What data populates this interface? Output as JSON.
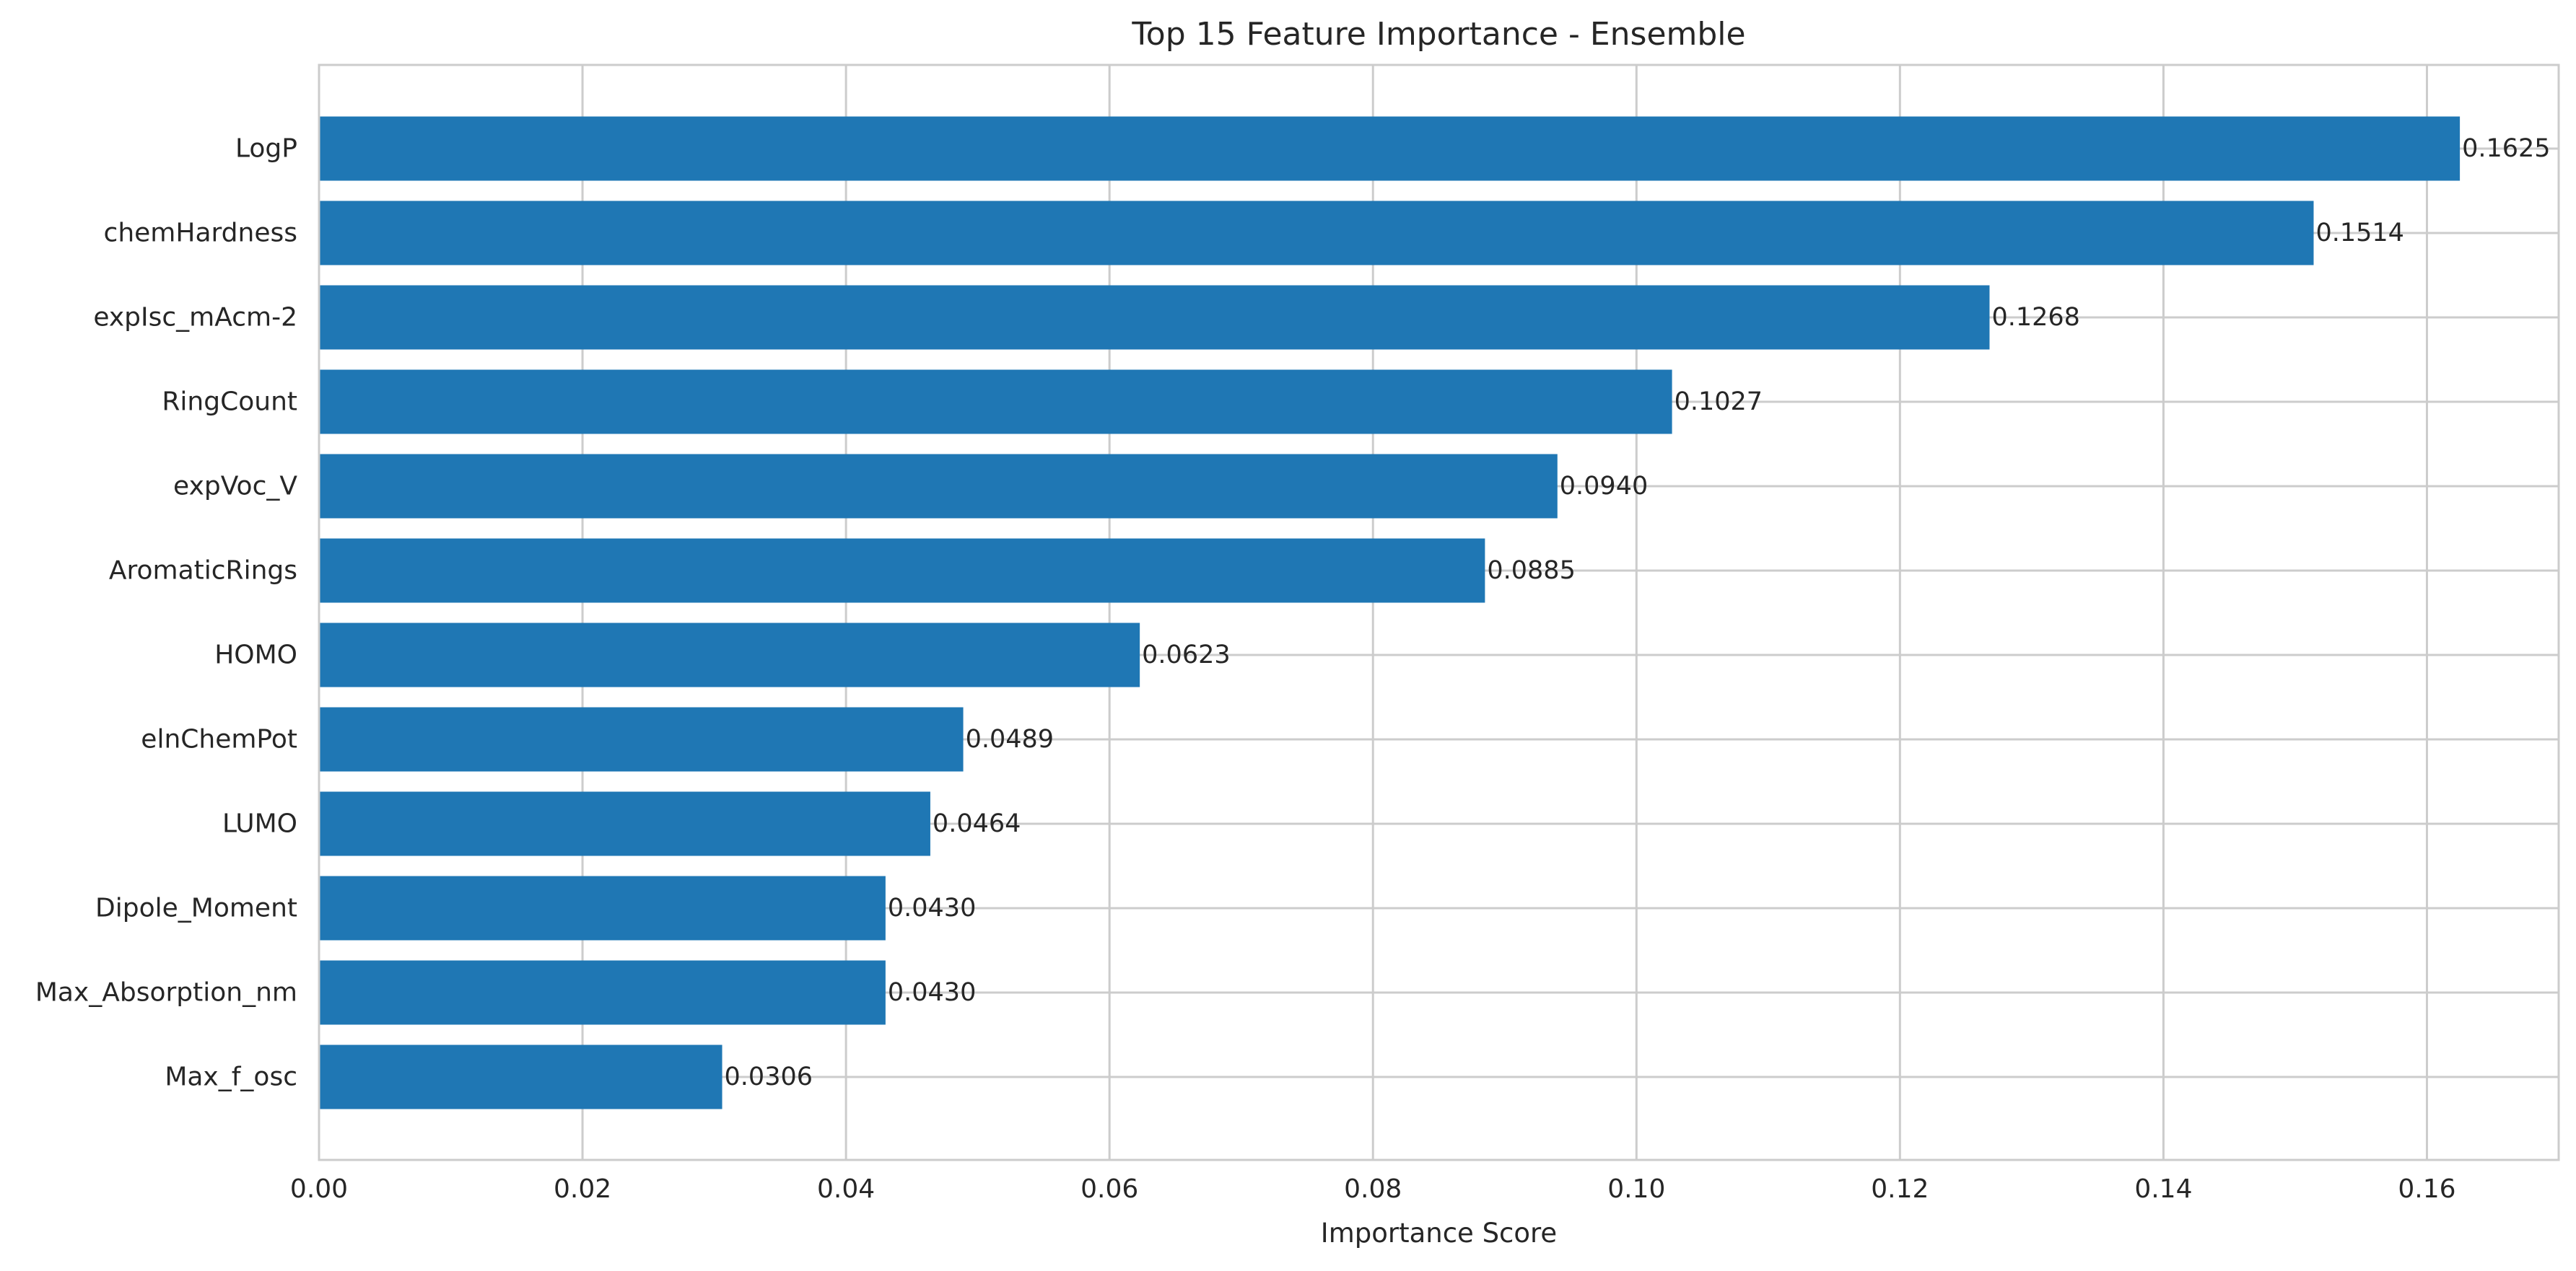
{
  "chart_data": {
    "type": "bar",
    "orientation": "horizontal",
    "title": "Top 15 Feature Importance - Ensemble",
    "xlabel": "Importance Score",
    "ylabel": "",
    "xlim": [
      0,
      0.17
    ],
    "xticks": [
      0.0,
      0.02,
      0.04,
      0.06,
      0.08,
      0.1,
      0.12,
      0.14,
      0.16
    ],
    "xtick_labels": [
      "0.00",
      "0.02",
      "0.04",
      "0.06",
      "0.08",
      "0.10",
      "0.12",
      "0.14",
      "0.16"
    ],
    "grid": true,
    "bar_color": "#1f77b4",
    "categories": [
      "LogP",
      "chemHardness",
      "expIsc_mAcm-2",
      "RingCount",
      "expVoc_V",
      "AromaticRings",
      "HOMO",
      "elnChemPot",
      "LUMO",
      "Dipole_Moment",
      "Max_Absorption_nm",
      "Max_f_osc"
    ],
    "values": [
      0.1625,
      0.1514,
      0.1268,
      0.1027,
      0.094,
      0.0885,
      0.0623,
      0.0489,
      0.0464,
      0.043,
      0.043,
      0.0306
    ],
    "value_labels": [
      "0.1625",
      "0.1514",
      "0.1268",
      "0.1027",
      "0.0940",
      "0.0885",
      "0.0623",
      "0.0489",
      "0.0464",
      "0.0430",
      "0.0430",
      "0.0306"
    ]
  }
}
